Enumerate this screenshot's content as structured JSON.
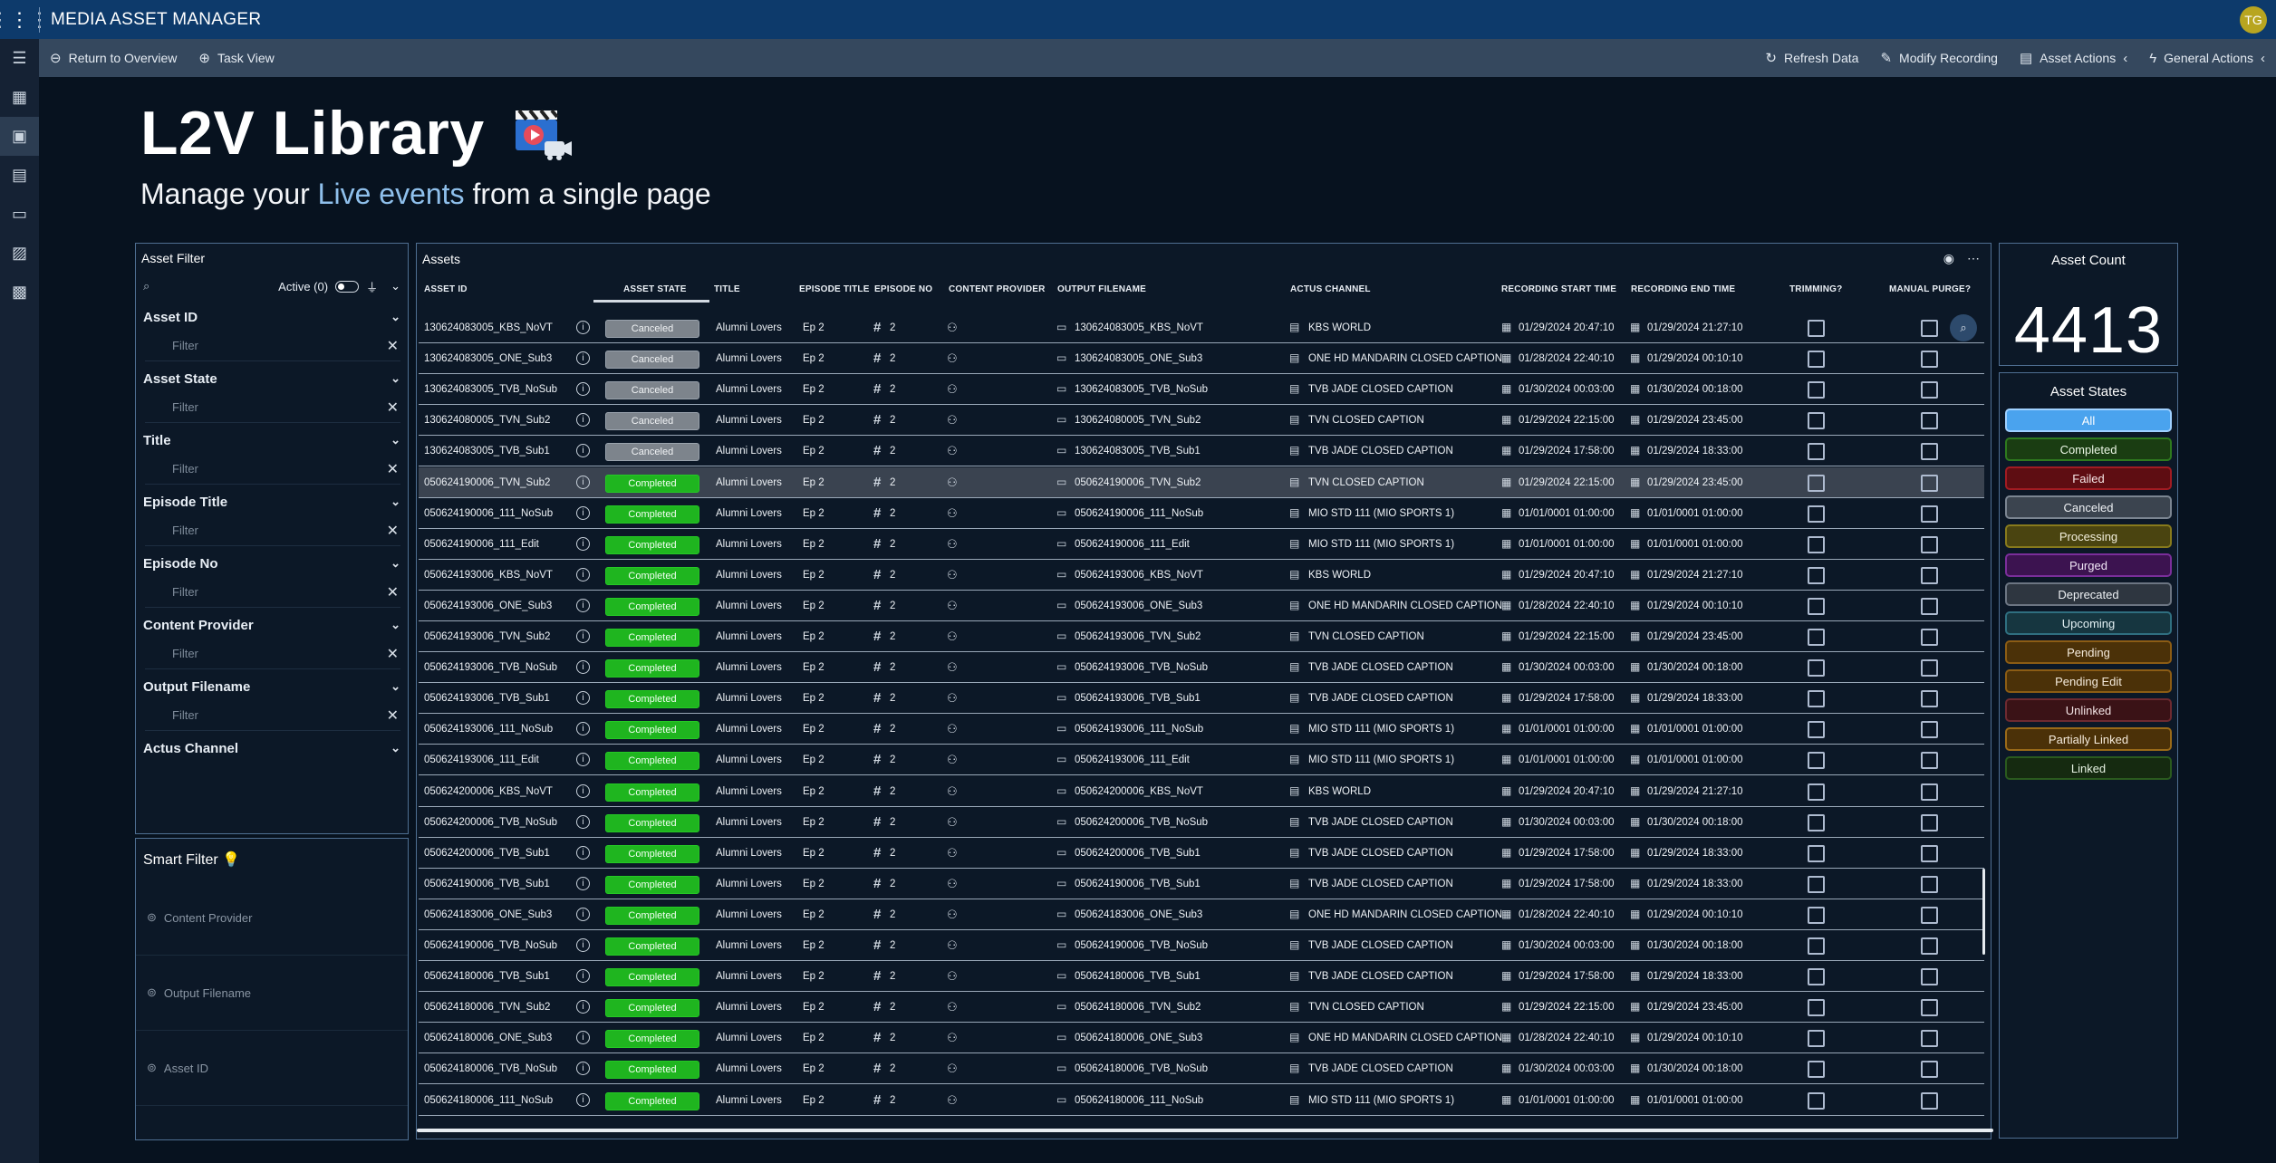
{
  "app": {
    "title": "MEDIA ASSET MANAGER",
    "avatar": "TG"
  },
  "commands": {
    "return": "Return to Overview",
    "task": "Task View",
    "refresh": "Refresh Data",
    "modify": "Modify Recording",
    "asset_actions": "Asset Actions",
    "general_actions": "General Actions"
  },
  "hero": {
    "title": "L2V Library",
    "sub_pre": "Manage your",
    "sub_hl": "Live events",
    "sub_post": "from a single page"
  },
  "filter": {
    "title": "Asset Filter",
    "active": "Active (0)",
    "placeholder": "Filter",
    "groups": [
      "Asset ID",
      "Asset State",
      "Title",
      "Episode Title",
      "Episode No",
      "Content Provider",
      "Output Filename",
      "Actus Channel"
    ]
  },
  "smart": {
    "title": "Smart Filter",
    "items": [
      "Content Provider",
      "Output Filename",
      "Asset ID"
    ]
  },
  "assets": {
    "title": "Assets",
    "columns": [
      "ASSET ID",
      "ASSET STATE",
      "TITLE",
      "EPISODE TITLE",
      "EPISODE NO",
      "CONTENT PROVIDER",
      "OUTPUT FILENAME",
      "ACTUS CHANNEL",
      "RECORDING START TIME",
      "RECORDING END TIME",
      "TRIMMING?",
      "MANUAL PURGE?"
    ],
    "rows": [
      {
        "id": "130624083005_KBS_NoVT",
        "state": "Canceled",
        "title": "Alumni Lovers",
        "ep": "Ep 2",
        "no": "2",
        "file": "130624083005_KBS_NoVT",
        "channel": "KBS WORLD",
        "start": "01/29/2024 20:47:10",
        "end": "01/29/2024 21:27:10"
      },
      {
        "id": "130624083005_ONE_Sub3",
        "state": "Canceled",
        "title": "Alumni Lovers",
        "ep": "Ep 2",
        "no": "2",
        "file": "130624083005_ONE_Sub3",
        "channel": "ONE HD MANDARIN CLOSED CAPTION",
        "start": "01/28/2024 22:40:10",
        "end": "01/29/2024 00:10:10"
      },
      {
        "id": "130624083005_TVB_NoSub",
        "state": "Canceled",
        "title": "Alumni Lovers",
        "ep": "Ep 2",
        "no": "2",
        "file": "130624083005_TVB_NoSub",
        "channel": "TVB JADE CLOSED CAPTION",
        "start": "01/30/2024 00:03:00",
        "end": "01/30/2024 00:18:00"
      },
      {
        "id": "130624080005_TVN_Sub2",
        "state": "Canceled",
        "title": "Alumni Lovers",
        "ep": "Ep 2",
        "no": "2",
        "file": "130624080005_TVN_Sub2",
        "channel": "TVN CLOSED CAPTION",
        "start": "01/29/2024 22:15:00",
        "end": "01/29/2024 23:45:00"
      },
      {
        "id": "130624083005_TVB_Sub1",
        "state": "Canceled",
        "title": "Alumni Lovers",
        "ep": "Ep 2",
        "no": "2",
        "file": "130624083005_TVB_Sub1",
        "channel": "TVB JADE CLOSED CAPTION",
        "start": "01/29/2024 17:58:00",
        "end": "01/29/2024 18:33:00"
      },
      {
        "id": "050624190006_TVN_Sub2",
        "state": "Completed",
        "title": "Alumni Lovers",
        "ep": "Ep 2",
        "no": "2",
        "file": "050624190006_TVN_Sub2",
        "channel": "TVN CLOSED CAPTION",
        "start": "01/29/2024 22:15:00",
        "end": "01/29/2024 23:45:00"
      },
      {
        "id": "050624190006_111_NoSub",
        "state": "Completed",
        "title": "Alumni Lovers",
        "ep": "Ep 2",
        "no": "2",
        "file": "050624190006_111_NoSub",
        "channel": "MIO STD 111 (MIO SPORTS 1)",
        "start": "01/01/0001 01:00:00",
        "end": "01/01/0001 01:00:00"
      },
      {
        "id": "050624190006_111_Edit",
        "state": "Completed",
        "title": "Alumni Lovers",
        "ep": "Ep 2",
        "no": "2",
        "file": "050624190006_111_Edit",
        "channel": "MIO STD 111 (MIO SPORTS 1)",
        "start": "01/01/0001 01:00:00",
        "end": "01/01/0001 01:00:00"
      },
      {
        "id": "050624193006_KBS_NoVT",
        "state": "Completed",
        "title": "Alumni Lovers",
        "ep": "Ep 2",
        "no": "2",
        "file": "050624193006_KBS_NoVT",
        "channel": "KBS WORLD",
        "start": "01/29/2024 20:47:10",
        "end": "01/29/2024 21:27:10"
      },
      {
        "id": "050624193006_ONE_Sub3",
        "state": "Completed",
        "title": "Alumni Lovers",
        "ep": "Ep 2",
        "no": "2",
        "file": "050624193006_ONE_Sub3",
        "channel": "ONE HD MANDARIN CLOSED CAPTION",
        "start": "01/28/2024 22:40:10",
        "end": "01/29/2024 00:10:10"
      },
      {
        "id": "050624193006_TVN_Sub2",
        "state": "Completed",
        "title": "Alumni Lovers",
        "ep": "Ep 2",
        "no": "2",
        "file": "050624193006_TVN_Sub2",
        "channel": "TVN CLOSED CAPTION",
        "start": "01/29/2024 22:15:00",
        "end": "01/29/2024 23:45:00"
      },
      {
        "id": "050624193006_TVB_NoSub",
        "state": "Completed",
        "title": "Alumni Lovers",
        "ep": "Ep 2",
        "no": "2",
        "file": "050624193006_TVB_NoSub",
        "channel": "TVB JADE CLOSED CAPTION",
        "start": "01/30/2024 00:03:00",
        "end": "01/30/2024 00:18:00"
      },
      {
        "id": "050624193006_TVB_Sub1",
        "state": "Completed",
        "title": "Alumni Lovers",
        "ep": "Ep 2",
        "no": "2",
        "file": "050624193006_TVB_Sub1",
        "channel": "TVB JADE CLOSED CAPTION",
        "start": "01/29/2024 17:58:00",
        "end": "01/29/2024 18:33:00"
      },
      {
        "id": "050624193006_111_NoSub",
        "state": "Completed",
        "title": "Alumni Lovers",
        "ep": "Ep 2",
        "no": "2",
        "file": "050624193006_111_NoSub",
        "channel": "MIO STD 111 (MIO SPORTS 1)",
        "start": "01/01/0001 01:00:00",
        "end": "01/01/0001 01:00:00"
      },
      {
        "id": "050624193006_111_Edit",
        "state": "Completed",
        "title": "Alumni Lovers",
        "ep": "Ep 2",
        "no": "2",
        "file": "050624193006_111_Edit",
        "channel": "MIO STD 111 (MIO SPORTS 1)",
        "start": "01/01/0001 01:00:00",
        "end": "01/01/0001 01:00:00"
      },
      {
        "id": "050624200006_KBS_NoVT",
        "state": "Completed",
        "title": "Alumni Lovers",
        "ep": "Ep 2",
        "no": "2",
        "file": "050624200006_KBS_NoVT",
        "channel": "KBS WORLD",
        "start": "01/29/2024 20:47:10",
        "end": "01/29/2024 21:27:10"
      },
      {
        "id": "050624200006_TVB_NoSub",
        "state": "Completed",
        "title": "Alumni Lovers",
        "ep": "Ep 2",
        "no": "2",
        "file": "050624200006_TVB_NoSub",
        "channel": "TVB JADE CLOSED CAPTION",
        "start": "01/30/2024 00:03:00",
        "end": "01/30/2024 00:18:00"
      },
      {
        "id": "050624200006_TVB_Sub1",
        "state": "Completed",
        "title": "Alumni Lovers",
        "ep": "Ep 2",
        "no": "2",
        "file": "050624200006_TVB_Sub1",
        "channel": "TVB JADE CLOSED CAPTION",
        "start": "01/29/2024 17:58:00",
        "end": "01/29/2024 18:33:00"
      },
      {
        "id": "050624190006_TVB_Sub1",
        "state": "Completed",
        "title": "Alumni Lovers",
        "ep": "Ep 2",
        "no": "2",
        "file": "050624190006_TVB_Sub1",
        "channel": "TVB JADE CLOSED CAPTION",
        "start": "01/29/2024 17:58:00",
        "end": "01/29/2024 18:33:00"
      },
      {
        "id": "050624183006_ONE_Sub3",
        "state": "Completed",
        "title": "Alumni Lovers",
        "ep": "Ep 2",
        "no": "2",
        "file": "050624183006_ONE_Sub3",
        "channel": "ONE HD MANDARIN CLOSED CAPTION",
        "start": "01/28/2024 22:40:10",
        "end": "01/29/2024 00:10:10"
      },
      {
        "id": "050624190006_TVB_NoSub",
        "state": "Completed",
        "title": "Alumni Lovers",
        "ep": "Ep 2",
        "no": "2",
        "file": "050624190006_TVB_NoSub",
        "channel": "TVB JADE CLOSED CAPTION",
        "start": "01/30/2024 00:03:00",
        "end": "01/30/2024 00:18:00"
      },
      {
        "id": "050624180006_TVB_Sub1",
        "state": "Completed",
        "title": "Alumni Lovers",
        "ep": "Ep 2",
        "no": "2",
        "file": "050624180006_TVB_Sub1",
        "channel": "TVB JADE CLOSED CAPTION",
        "start": "01/29/2024 17:58:00",
        "end": "01/29/2024 18:33:00"
      },
      {
        "id": "050624180006_TVN_Sub2",
        "state": "Completed",
        "title": "Alumni Lovers",
        "ep": "Ep 2",
        "no": "2",
        "file": "050624180006_TVN_Sub2",
        "channel": "TVN CLOSED CAPTION",
        "start": "01/29/2024 22:15:00",
        "end": "01/29/2024 23:45:00"
      },
      {
        "id": "050624180006_ONE_Sub3",
        "state": "Completed",
        "title": "Alumni Lovers",
        "ep": "Ep 2",
        "no": "2",
        "file": "050624180006_ONE_Sub3",
        "channel": "ONE HD MANDARIN CLOSED CAPTION",
        "start": "01/28/2024 22:40:10",
        "end": "01/29/2024 00:10:10"
      },
      {
        "id": "050624180006_TVB_NoSub",
        "state": "Completed",
        "title": "Alumni Lovers",
        "ep": "Ep 2",
        "no": "2",
        "file": "050624180006_TVB_NoSub",
        "channel": "TVB JADE CLOSED CAPTION",
        "start": "01/30/2024 00:03:00",
        "end": "01/30/2024 00:18:00"
      },
      {
        "id": "050624180006_111_NoSub",
        "state": "Completed",
        "title": "Alumni Lovers",
        "ep": "Ep 2",
        "no": "2",
        "file": "050624180006_111_NoSub",
        "channel": "MIO STD 111 (MIO SPORTS 1)",
        "start": "01/01/0001 01:00:00",
        "end": "01/01/0001 01:00:00"
      }
    ]
  },
  "count": {
    "title": "Asset Count",
    "value": "4413"
  },
  "states": {
    "title": "Asset States",
    "items": [
      {
        "label": "All",
        "bg": "#4aa3ee",
        "border": "#9fd0ff",
        "fg": "#ffffff"
      },
      {
        "label": "Completed",
        "bg": "#1a3d12",
        "border": "#2e7a1e",
        "fg": "#eaf5e4"
      },
      {
        "label": "Failed",
        "bg": "#5e0d12",
        "border": "#a11b22",
        "fg": "#f6e6e6"
      },
      {
        "label": "Canceled",
        "bg": "#3b444f",
        "border": "#7b8591",
        "fg": "#eef1f4"
      },
      {
        "label": "Processing",
        "bg": "#4a4410",
        "border": "#877a1c",
        "fg": "#f3efdc"
      },
      {
        "label": "Purged",
        "bg": "#3c1350",
        "border": "#7a2e9a",
        "fg": "#f0e6f5"
      },
      {
        "label": "Deprecated",
        "bg": "#2e3640",
        "border": "#6c7582",
        "fg": "#eef1f4"
      },
      {
        "label": "Upcoming",
        "bg": "#163640",
        "border": "#2f6f80",
        "fg": "#e4f1f4"
      },
      {
        "label": "Pending",
        "bg": "#4b3108",
        "border": "#8c5c14",
        "fg": "#f5ebdc"
      },
      {
        "label": "Pending Edit",
        "bg": "#4b3108",
        "border": "#8c5c14",
        "fg": "#f5ebdc"
      },
      {
        "label": "Unlinked",
        "bg": "#3a1216",
        "border": "#6e2a30",
        "fg": "#f3e4e5"
      },
      {
        "label": "Partially Linked",
        "bg": "#4b3108",
        "border": "#9a6a18",
        "fg": "#f5ebdc"
      },
      {
        "label": "Linked",
        "bg": "#152a10",
        "border": "#2a5a1e",
        "fg": "#e4f0e0"
      }
    ]
  }
}
